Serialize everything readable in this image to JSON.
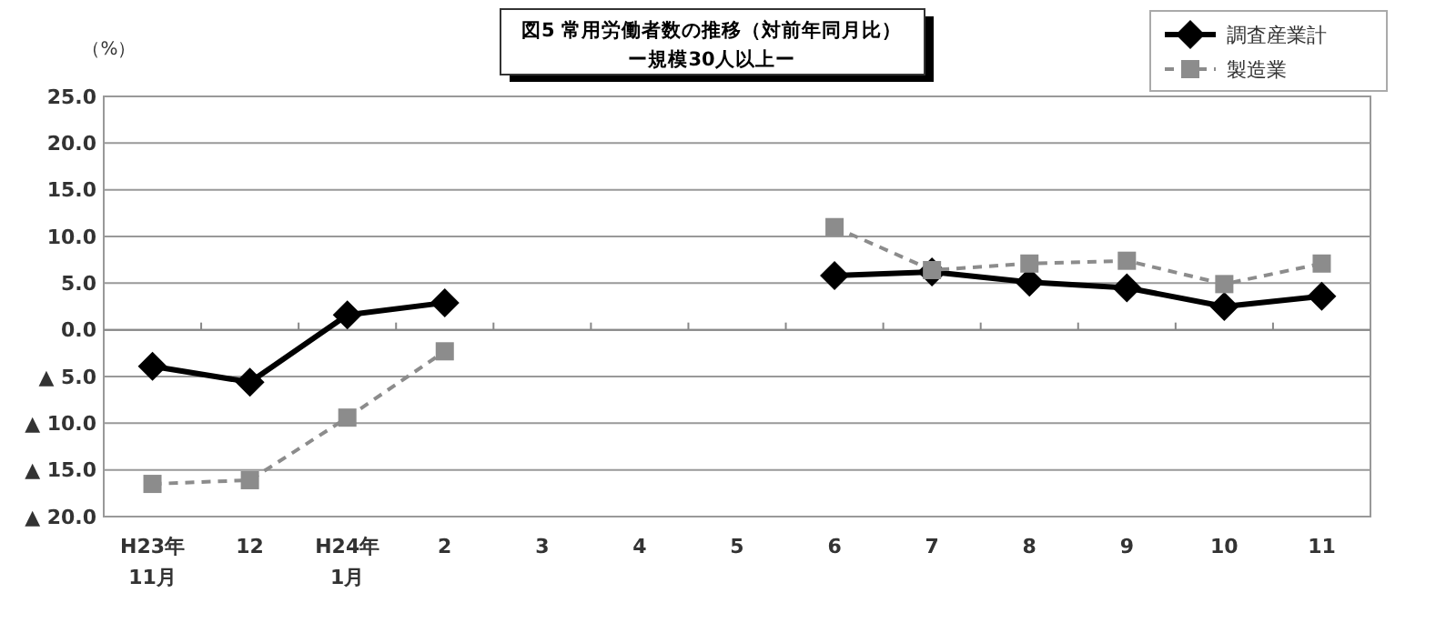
{
  "chart_data": {
    "type": "line",
    "title": "図5 常用労働者数の推移（対前年同月比）",
    "subtitle": "ー規模30人以上ー",
    "ylabel": "（%）",
    "categories": [
      "H23年\n11月",
      "12",
      "H24年\n1月",
      "2",
      "3",
      "4",
      "5",
      "6",
      "7",
      "8",
      "9",
      "10",
      "11"
    ],
    "series": [
      {
        "name": "調査産業計",
        "color": "#000000",
        "marker": "diamond",
        "line_style": "solid",
        "values": [
          -3.9,
          -5.6,
          1.6,
          2.9,
          null,
          null,
          null,
          5.8,
          6.2,
          5.1,
          4.5,
          2.5,
          3.6
        ]
      },
      {
        "name": "製造業",
        "color": "#8c8c8c",
        "marker": "square",
        "line_style": "dashed",
        "values": [
          -16.5,
          -16.1,
          -9.4,
          -2.3,
          null,
          null,
          null,
          11.0,
          6.4,
          7.1,
          7.4,
          4.9,
          7.1
        ]
      }
    ],
    "ylim": [
      -20,
      25
    ],
    "yticks": [
      {
        "value": -20,
        "label": "▲ 20.0"
      },
      {
        "value": -15,
        "label": "▲ 15.0"
      },
      {
        "value": -10,
        "label": "▲ 10.0"
      },
      {
        "value": -5,
        "label": "▲ 5.0"
      },
      {
        "value": 0,
        "label": "0.0"
      },
      {
        "value": 5,
        "label": "5.0"
      },
      {
        "value": 10,
        "label": "10.0"
      },
      {
        "value": 15,
        "label": "15.0"
      },
      {
        "value": 20,
        "label": "20.0"
      },
      {
        "value": 25,
        "label": "25.0"
      }
    ],
    "grid": "y",
    "legend": "top right"
  }
}
